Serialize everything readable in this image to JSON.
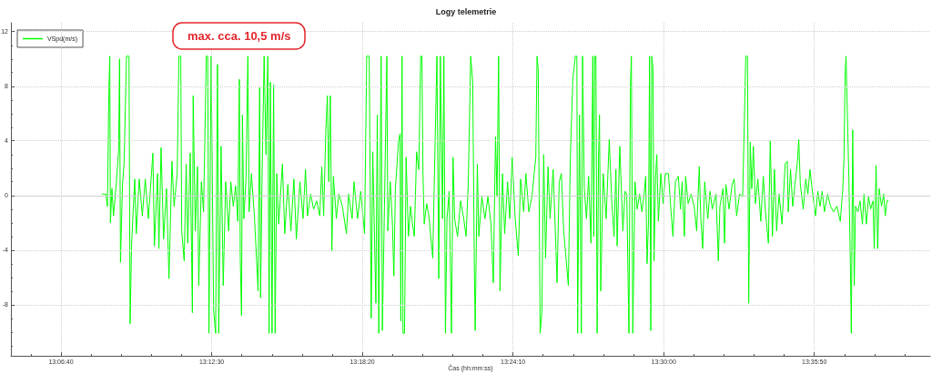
{
  "chart_data": {
    "type": "line",
    "title": "Logy telemetrie",
    "xlabel": "Čas (hh:mm:ss)",
    "annotations": [
      "max. cca. 10,5 m/s"
    ],
    "xlim": [
      13.0788,
      13.672
    ],
    "xticks": [
      {
        "value": 13.09167,
        "label": null
      },
      {
        "value": 13.11111,
        "label": "13:06:40"
      },
      {
        "value": 13.13056,
        "label": null
      },
      {
        "value": 13.15,
        "label": null
      },
      {
        "value": 13.16944,
        "label": null
      },
      {
        "value": 13.18889,
        "label": null
      },
      {
        "value": 13.20833,
        "label": "13:12:30"
      },
      {
        "value": 13.22778,
        "label": null
      },
      {
        "value": 13.24722,
        "label": null
      },
      {
        "value": 13.26667,
        "label": null
      },
      {
        "value": 13.28611,
        "label": null
      },
      {
        "value": 13.30556,
        "label": "13:18:20"
      },
      {
        "value": 13.325,
        "label": null
      },
      {
        "value": 13.34444,
        "label": null
      },
      {
        "value": 13.36389,
        "label": null
      },
      {
        "value": 13.38333,
        "label": null
      },
      {
        "value": 13.40278,
        "label": "13:24:10"
      },
      {
        "value": 13.42222,
        "label": null
      },
      {
        "value": 13.44167,
        "label": null
      },
      {
        "value": 13.46111,
        "label": null
      },
      {
        "value": 13.48056,
        "label": null
      },
      {
        "value": 13.5,
        "label": "13:30:00"
      },
      {
        "value": 13.51944,
        "label": null
      },
      {
        "value": 13.53889,
        "label": null
      },
      {
        "value": 13.55833,
        "label": null
      },
      {
        "value": 13.57778,
        "label": null
      },
      {
        "value": 13.59722,
        "label": "13:35:50"
      },
      {
        "value": 13.61667,
        "label": null
      },
      {
        "value": 13.63611,
        "label": null
      },
      {
        "value": 13.65556,
        "label": null
      }
    ],
    "ylim": [
      -11.75,
      12.65
    ],
    "yticks": [
      {
        "value": -11,
        "label": null
      },
      {
        "value": -10,
        "label": null
      },
      {
        "value": -9,
        "label": null
      },
      -8,
      {
        "value": -7,
        "label": null
      },
      {
        "value": -6,
        "label": null
      },
      {
        "value": -5,
        "label": null
      },
      -4,
      {
        "value": -3,
        "label": null
      },
      {
        "value": -2,
        "label": null
      },
      {
        "value": -1,
        "label": null
      },
      0,
      {
        "value": 1,
        "label": null
      },
      {
        "value": 2,
        "label": null
      },
      {
        "value": 3,
        "label": null
      },
      4,
      {
        "value": 5,
        "label": null
      },
      {
        "value": 6,
        "label": null
      },
      {
        "value": 7,
        "label": null
      },
      8,
      {
        "value": 9,
        "label": null
      },
      {
        "value": 10,
        "label": null
      },
      {
        "value": 11,
        "label": null
      },
      12
    ],
    "grid": true,
    "legend": "top left",
    "marker": "none",
    "line_style": "solid",
    "ref_lines": [
      {
        "axis": "y",
        "value": 0,
        "color": "#d0d0d0"
      }
    ],
    "x": [
      13.1377,
      13.1401,
      13.1411,
      13.142,
      13.1426,
      13.143,
      13.144,
      13.145,
      13.1469,
      13.1483,
      13.1489,
      13.1495,
      13.1508,
      13.1518,
      13.1534,
      13.155,
      13.1557,
      13.1567,
      13.1587,
      13.1597,
      13.1616,
      13.1636,
      13.1655,
      13.1675,
      13.1704,
      13.1714,
      13.1734,
      13.1743,
      13.1757,
      13.1773,
      13.1792,
      13.1808,
      13.1827,
      13.1841,
      13.1861,
      13.1872,
      13.1884,
      13.189,
      13.1906,
      13.1919,
      13.1929,
      13.1945,
      13.1959,
      13.1964,
      13.1978,
      13.1992,
      13.2,
      13.2017,
      13.2031,
      13.2049,
      13.2058,
      13.2066,
      13.208,
      13.2096,
      13.2109,
      13.2121,
      13.2129,
      13.2144,
      13.2158,
      13.2174,
      13.2193,
      13.2207,
      13.2223,
      13.2238,
      13.2252,
      13.2262,
      13.2268,
      13.2276,
      13.2282,
      13.2291,
      13.2305,
      13.2317,
      13.2325,
      13.234,
      13.236,
      13.2383,
      13.2393,
      13.2399,
      13.2409,
      13.2422,
      13.2434,
      13.2446,
      13.2454,
      13.2462,
      13.2473,
      13.2483,
      13.2493,
      13.2503,
      13.2516,
      13.254,
      13.2555,
      13.2575,
      13.2595,
      13.2614,
      13.263,
      13.2653,
      13.2673,
      13.2689,
      13.2702,
      13.2722,
      13.2741,
      13.2761,
      13.2781,
      13.2794,
      13.2806,
      13.282,
      13.283,
      13.2839,
      13.2849,
      13.2859,
      13.2869,
      13.2888,
      13.2904,
      13.2927,
      13.2953,
      13.2967,
      13.299,
      13.3002,
      13.3025,
      13.3045,
      13.307,
      13.3084,
      13.31,
      13.3113,
      13.3123,
      13.3143,
      13.3152,
      13.3162,
      13.3177,
      13.3185,
      13.3201,
      13.3214,
      13.322,
      13.3236,
      13.325,
      13.3259,
      13.3269,
      13.3289,
      13.3299,
      13.3304,
      13.3312,
      13.3318,
      13.3328,
      13.3338,
      13.3353,
      13.3367,
      13.3377,
      13.3391,
      13.3406,
      13.342,
      13.3432,
      13.344,
      13.3447,
      13.3455,
      13.3471,
      13.3485,
      13.351,
      13.3524,
      13.3537,
      13.3549,
      13.3559,
      13.3573,
      13.3582,
      13.3592,
      13.3602,
      13.3616,
      13.3631,
      13.3641,
      13.3651,
      13.367,
      13.369,
      13.371,
      13.3725,
      13.3739,
      13.3755,
      13.3768,
      13.3778,
      13.3784,
      13.3798,
      13.3807,
      13.3827,
      13.3847,
      13.3866,
      13.3886,
      13.3901,
      13.3915,
      13.3925,
      13.3935,
      13.3944,
      13.396,
      13.3974,
      13.3993,
      13.4007,
      13.4023,
      13.4042,
      13.4062,
      13.4077,
      13.4097,
      13.4111,
      13.413,
      13.415,
      13.4175,
      13.4183,
      13.4191,
      13.4203,
      13.4214,
      13.4226,
      13.4238,
      13.4254,
      13.4267,
      13.4287,
      13.4301,
      13.4312,
      13.4326,
      13.434,
      13.4355,
      13.4385,
      13.4398,
      13.4414,
      13.443,
      13.444,
      13.4445,
      13.4457,
      13.4469,
      13.4477,
      13.4488,
      13.4502,
      13.4516,
      13.4531,
      13.4543,
      13.4549,
      13.4555,
      13.4563,
      13.4571,
      13.458,
      13.4586,
      13.4594,
      13.461,
      13.4629,
      13.4649,
      13.4665,
      13.468,
      13.4692,
      13.47,
      13.4717,
      13.4737,
      13.4751,
      13.4762,
      13.4776,
      13.4786,
      13.4792,
      13.4801,
      13.4815,
      13.4829,
      13.4845,
      13.486,
      13.4874,
      13.4884,
      13.4893,
      13.4903,
      13.4909,
      13.4917,
      13.4923,
      13.4931,
      13.4938,
      13.4948,
      13.4956,
      13.4966,
      13.4982,
      13.4997,
      13.5011,
      13.5031,
      13.5044,
      13.506,
      13.5076,
      13.5095,
      13.5109,
      13.5119,
      13.5134,
      13.5142,
      13.5158,
      13.5177,
      13.5197,
      13.5213,
      13.523,
      13.524,
      13.5252,
      13.5265,
      13.5285,
      13.5299,
      13.5314,
      13.5338,
      13.5353,
      13.5363,
      13.5383,
      13.5393,
      13.5402,
      13.5422,
      13.5442,
      13.5455,
      13.5471,
      13.549,
      13.551,
      13.553,
      13.5541,
      13.5549,
      13.5559,
      13.5569,
      13.5579,
      13.5592,
      13.5608,
      13.5627,
      13.5643,
      13.5657,
      13.5676,
      13.5688,
      13.5702,
      13.5715,
      13.5729,
      13.5745,
      13.5764,
      13.5784,
      13.5798,
      13.5804,
      13.5819,
      13.5833,
      13.5847,
      13.5862,
      13.5872,
      13.5882,
      13.5901,
      13.5917,
      13.5931,
      13.5944,
      13.596,
      13.598,
      13.5995,
      13.6009,
      13.6023,
      13.6038,
      13.6058,
      13.6077,
      13.6097,
      13.6117,
      13.6126,
      13.614,
      13.6156,
      13.6164,
      13.6171,
      13.6177,
      13.6185,
      13.6195,
      13.6205,
      13.6211,
      13.622,
      13.623,
      13.6238,
      13.6254,
      13.6267,
      13.6283,
      13.6293,
      13.6308,
      13.6322,
      13.6336,
      13.6351,
      13.6359,
      13.6371,
      13.6381,
      13.6391,
      13.6406,
      13.642,
      13.643,
      13.6441,
      13.6449
    ],
    "series": [
      {
        "name": "VSpd(m/s)",
        "color": "#00ff00",
        "values": [
          0.1,
          0.1,
          -0.8,
          7.6,
          10.2,
          -2.0,
          0.5,
          -1.5,
          1.0,
          3.3,
          10.0,
          -4.9,
          0.8,
          2.3,
          10.2,
          10.2,
          -9.4,
          -3.5,
          1.2,
          -2.8,
          1.2,
          -1.5,
          1.2,
          -1.7,
          3.1,
          -3.7,
          1.6,
          -3.9,
          3.5,
          -3.2,
          0.5,
          -6.1,
          2.5,
          -0.8,
          1.6,
          10.2,
          10.2,
          -2.6,
          -4.8,
          2.3,
          -3.5,
          3.1,
          -8.6,
          7.3,
          -2.6,
          2.1,
          -6.6,
          1.0,
          -1.2,
          10.2,
          10.2,
          -10.1,
          10.2,
          -8.4,
          -10.1,
          9.6,
          -10.1,
          3.6,
          -6.6,
          1.0,
          -2.6,
          1.0,
          -0.8,
          0.7,
          -1.9,
          8.5,
          -4.6,
          -8.8,
          5.9,
          -1.7,
          1.2,
          10.2,
          -1.2,
          1.6,
          -1.7,
          -7.0,
          7.9,
          -7.5,
          1.6,
          10.2,
          3.0,
          10.2,
          -10.1,
          8.3,
          -10.1,
          8.1,
          -10.1,
          1.6,
          -2.1,
          2.3,
          -2.8,
          0.8,
          -2.6,
          1.2,
          -3.2,
          1.0,
          -1.7,
          1.9,
          -1.5,
          0.1,
          -1.0,
          -0.4,
          -1.5,
          2.1,
          -1.5,
          4.7,
          7.3,
          1.0,
          7.3,
          -4.1,
          1.4,
          -1.7,
          0.1,
          -0.8,
          -2.8,
          0.1,
          -1.7,
          1.0,
          -1.7,
          0.3,
          -2.8,
          10.2,
          10.2,
          -9.0,
          3.2,
          -7.9,
          5.9,
          -10.1,
          10.2,
          -9.9,
          1.0,
          10.2,
          -2.6,
          1.0,
          -2.1,
          -5.9,
          0.5,
          3.9,
          4.5,
          -9.2,
          10.2,
          -10.1,
          -10.1,
          2.8,
          -3.0,
          -0.8,
          -1.9,
          -3.0,
          3.2,
          1.9,
          10.2,
          10.2,
          1.6,
          -2.1,
          -0.6,
          -1.5,
          -4.6,
          3.2,
          10.2,
          -6.1,
          10.2,
          -1.7,
          10.2,
          -10.1,
          -1.7,
          0.3,
          -10.1,
          2.8,
          -1.7,
          -3.0,
          -0.4,
          -1.7,
          -3.0,
          0.8,
          10.2,
          8.3,
          -4.6,
          -9.9,
          2.3,
          -3.0,
          -0.1,
          -1.7,
          -0.1,
          -2.1,
          -6.4,
          4.3,
          -0.1,
          10.2,
          -7.0,
          1.6,
          -2.8,
          1.0,
          -1.7,
          2.8,
          -1.7,
          -4.4,
          1.2,
          -1.2,
          1.6,
          -1.2,
          -0.1,
          2.8,
          10.2,
          9.2,
          -10.1,
          -8.6,
          3.0,
          -4.6,
          2.1,
          -1.7,
          1.9,
          -2.6,
          -6.4,
          1.0,
          1.6,
          -2.6,
          -6.6,
          2.8,
          8.5,
          10.2,
          10.2,
          -10.1,
          5.9,
          -10.1,
          10.2,
          0.5,
          -1.7,
          1.4,
          -3.5,
          10.2,
          -3.0,
          10.2,
          10.2,
          -10.1,
          2.8,
          5.9,
          -7.0,
          1.6,
          -1.7,
          4.1,
          -0.4,
          -3.0,
          1.9,
          -3.7,
          3.6,
          -2.6,
          0.3,
          0.1,
          -10.1,
          8.3,
          10.2,
          -10.1,
          1.0,
          -1.0,
          0.1,
          -1.2,
          0.1,
          1.4,
          -5.0,
          -1.7,
          10.2,
          -9.9,
          10.2,
          9.4,
          -4.8,
          1.4,
          3.0,
          -1.9,
          1.6,
          -0.6,
          1.6,
          1.6,
          -0.6,
          -3.0,
          1.0,
          1.4,
          -1.0,
          1.0,
          -3.0,
          1.4,
          -0.6,
          0.1,
          -0.8,
          -2.6,
          2.1,
          -1.7,
          -3.9,
          1.0,
          -1.7,
          0.3,
          -1.0,
          0.1,
          -4.8,
          -0.8,
          0.5,
          -3.5,
          0.8,
          -1.0,
          0.8,
          1.2,
          -1.5,
          0.1,
          -0.1,
          10.2,
          10.2,
          -7.9,
          3.9,
          0.5,
          3.6,
          -0.6,
          1.2,
          -1.9,
          1.4,
          -1.2,
          -3.5,
          4.0,
          -3.0,
          1.9,
          -2.6,
          0.1,
          -2.1,
          2.3,
          2.5,
          -1.2,
          1.9,
          -0.8,
          0.8,
          2.3,
          4.1,
          0.8,
          -1.0,
          1.2,
          0.1,
          1.9,
          0.3,
          -1.5,
          0.3,
          -0.8,
          0.3,
          -1.2,
          0.1,
          -0.8,
          -1.2,
          -0.8,
          -1.2,
          -1.9,
          0.5,
          2.8,
          8.8,
          10.2,
          6.3,
          1.4,
          -5.0,
          -10.1,
          4.8,
          -6.6,
          -0.8,
          -1.2,
          -0.4,
          -2.1,
          0.1,
          -2.1,
          -0.1,
          -1.0,
          -0.4,
          -3.9,
          2.2,
          -3.9,
          0.5,
          -0.8,
          0.1,
          -1.5,
          -0.4,
          -0.4
        ]
      }
    ]
  }
}
